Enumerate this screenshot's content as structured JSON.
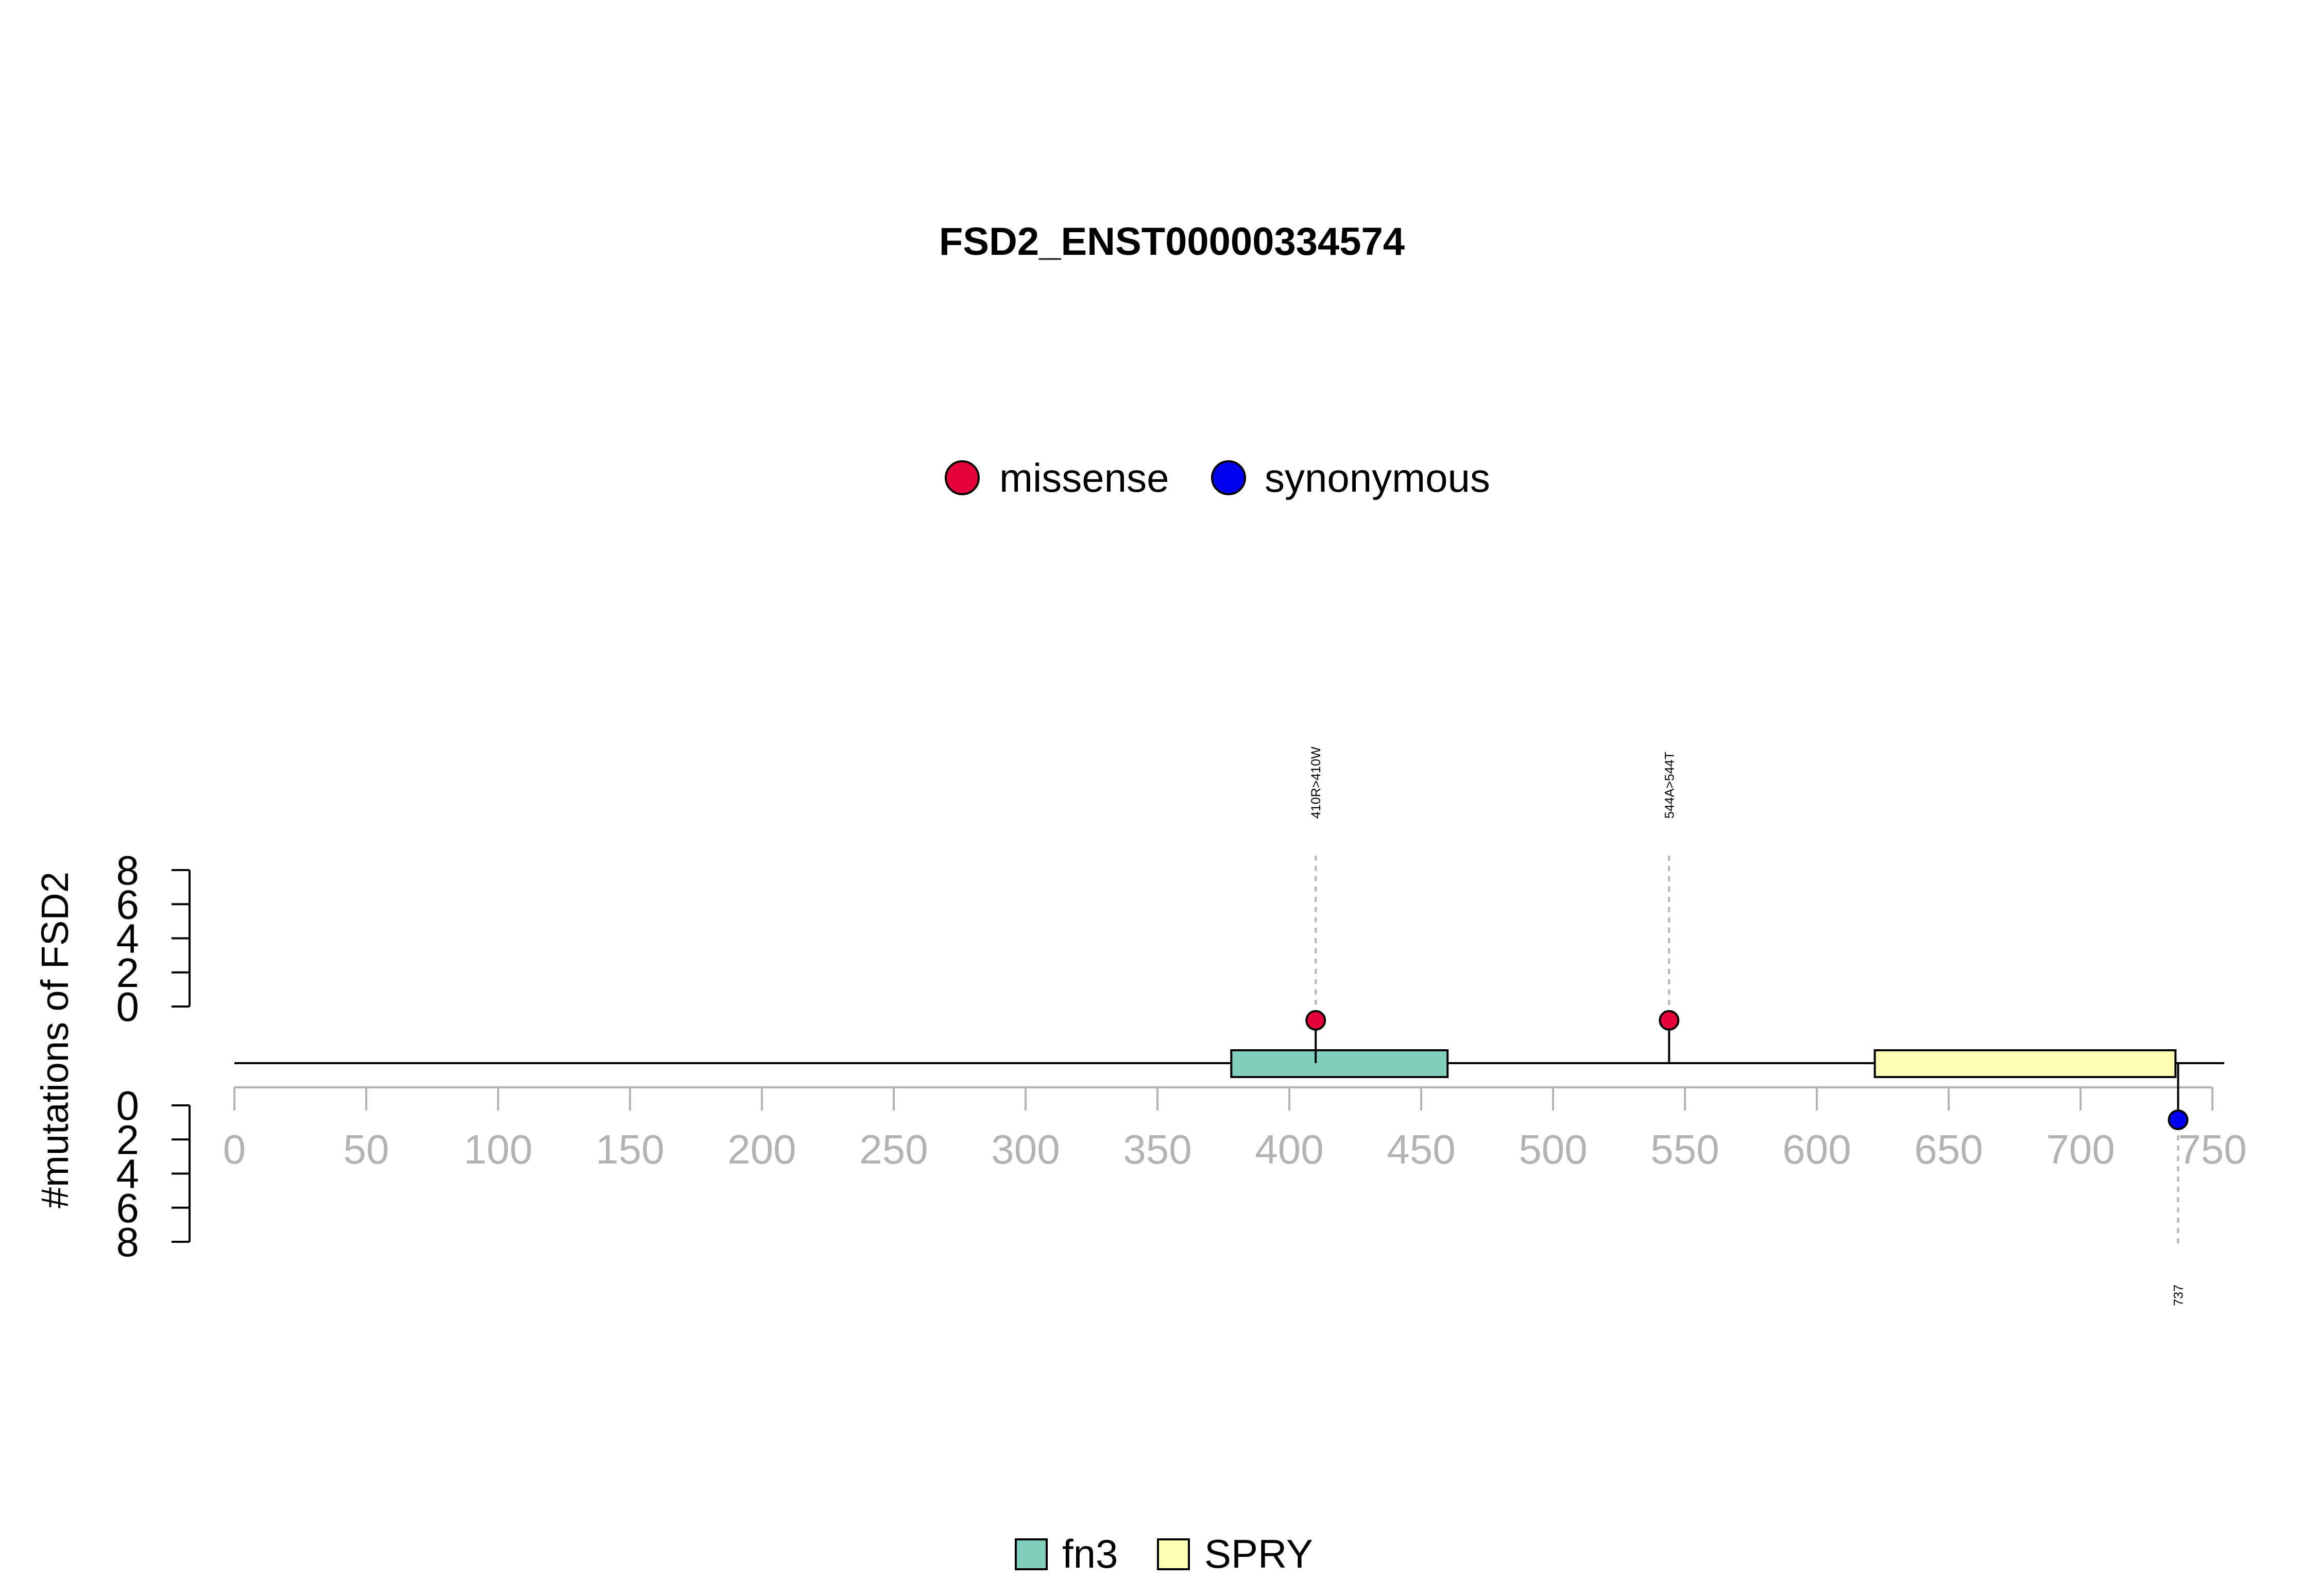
{
  "chart_data": {
    "type": "lollipop",
    "title": "FSD2_ENST00000334574",
    "ylabel": "#mutations of FSD2",
    "xlim": [
      0,
      750
    ],
    "x_ticks": [
      0,
      50,
      100,
      150,
      200,
      250,
      300,
      350,
      400,
      450,
      500,
      550,
      600,
      650,
      700,
      750
    ],
    "y_ticks": [
      0,
      2,
      4,
      6,
      8
    ],
    "ylim": [
      0,
      8
    ],
    "protein_length": 750,
    "mutation_legend": [
      {
        "label": "missense",
        "color": "#e4003b"
      },
      {
        "label": "synonymous",
        "color": "#0000ee"
      }
    ],
    "domain_legend": [
      {
        "label": "fn3",
        "color": "#7fcdbb"
      },
      {
        "label": "SPRY",
        "color": "#ffffb3"
      }
    ],
    "domains": [
      {
        "name": "fn3",
        "start": 378,
        "end": 460
      },
      {
        "name": "SPRY",
        "start": 622,
        "end": 736
      }
    ],
    "mutations": [
      {
        "position": 410,
        "label": "410R>410W",
        "type": "missense",
        "count": 1,
        "side": "top"
      },
      {
        "position": 544,
        "label": "544A>544T",
        "type": "missense",
        "count": 1,
        "side": "top"
      },
      {
        "position": 737,
        "label": "737",
        "type": "synonymous",
        "count": 1,
        "side": "bottom"
      }
    ]
  }
}
